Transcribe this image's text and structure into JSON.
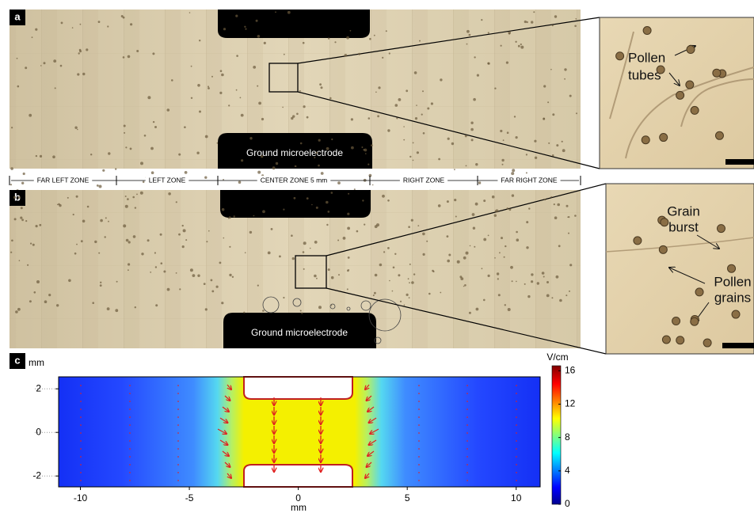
{
  "panels": {
    "a": {
      "label": "a",
      "electrode_label": "Ground microelectrode",
      "inset_labels": [
        "Pollen",
        "tubes"
      ]
    },
    "zones": [
      "FAR LEFT ZONE",
      "LEFT ZONE",
      "CENTER  ZONE  5 mm",
      "RIGHT ZONE",
      "FAR RIGHT ZONE"
    ],
    "b": {
      "label": "b",
      "electrode_label": "Ground microelectrode",
      "inset_labels": [
        [
          "Grain",
          "burst"
        ],
        [
          "Pollen",
          "grains"
        ]
      ]
    }
  },
  "chart_data": {
    "type": "heatmap",
    "panel_label": "c",
    "x_label": "mm",
    "y_label": "mm",
    "colorbar_label": "V/cm",
    "xlim": [
      -11,
      11.1
    ],
    "ylim": [
      -2.5,
      2.55
    ],
    "xticks": [
      -10,
      -5,
      0,
      5,
      10
    ],
    "yticks": [
      -2,
      0,
      2
    ],
    "clim": [
      0,
      16.6
    ],
    "cticks": [
      0,
      4,
      8,
      12,
      16
    ]
  }
}
